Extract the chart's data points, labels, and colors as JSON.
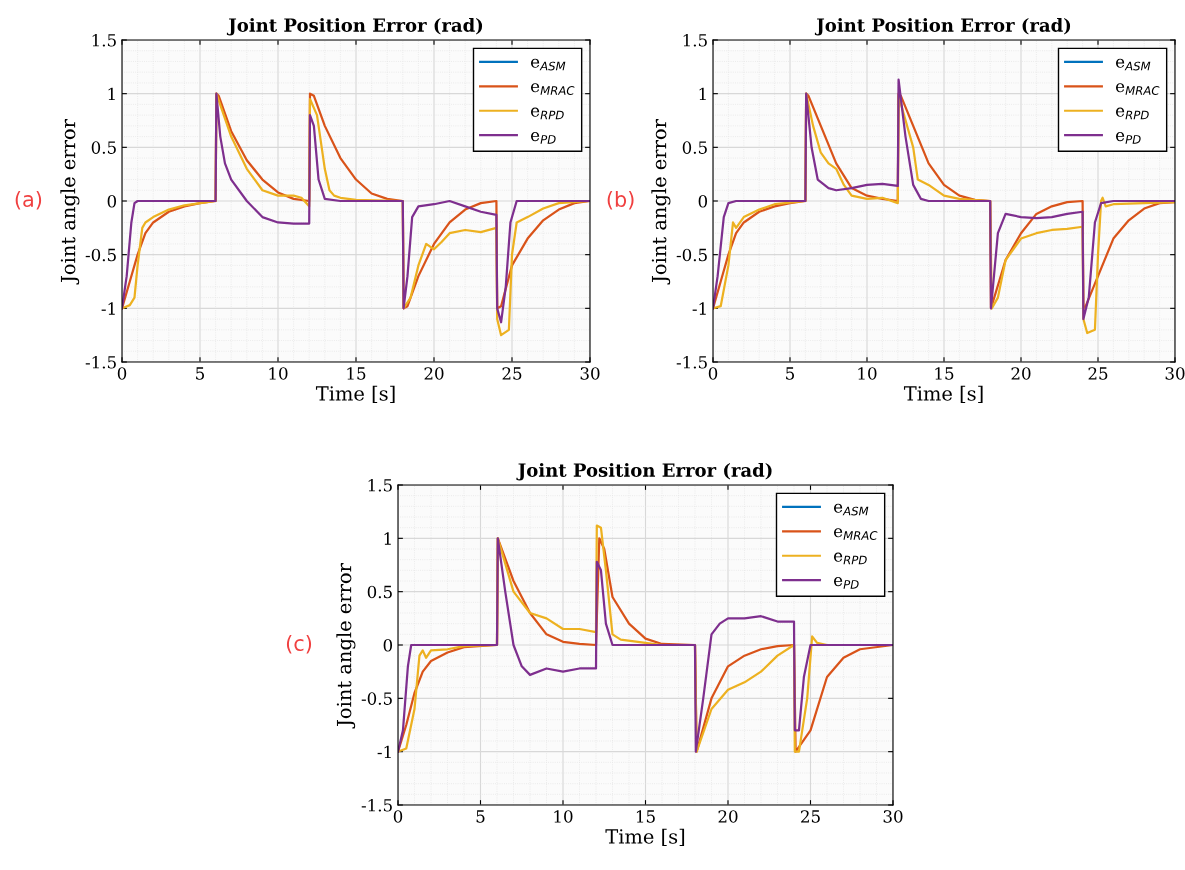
{
  "chart_data": [
    {
      "type": "line",
      "title": "Joint Position Error (rad)",
      "xlabel": "Time [s]",
      "ylabel": "Joint angle error",
      "annotations": [
        "(a)"
      ],
      "xlim": [
        0,
        30
      ],
      "xticks": [
        0,
        5,
        10,
        15,
        20,
        25,
        30
      ],
      "ylim": [
        -1.5,
        1.5
      ],
      "yticks": [
        -1.5,
        -1,
        -0.5,
        0,
        0.5,
        1,
        1.5
      ],
      "grid": true,
      "legend": "top right",
      "series": [
        {
          "name": "e$_{ASM}$",
          "color": "#0072bd"
        },
        {
          "name": "e$_{MRAC}$",
          "color": "#d95319",
          "x": [
            0,
            0.5,
            1,
            1.5,
            2,
            3,
            4,
            5,
            6,
            6.05,
            6.2,
            7,
            8,
            9,
            10,
            11,
            12,
            12.05,
            12.3,
            13,
            14,
            15,
            16,
            17,
            18,
            18.05,
            18.3,
            19,
            20,
            21,
            22,
            23,
            24,
            24.05,
            24.3,
            25,
            26,
            27,
            28,
            29,
            30
          ],
          "values": [
            -1,
            -0.75,
            -0.5,
            -0.3,
            -0.2,
            -0.1,
            -0.05,
            -0.02,
            0,
            1,
            0.98,
            0.65,
            0.38,
            0.2,
            0.08,
            0.02,
            0,
            1,
            0.98,
            0.7,
            0.4,
            0.2,
            0.07,
            0.02,
            0,
            -1,
            -0.98,
            -0.7,
            -0.4,
            -0.2,
            -0.08,
            -0.02,
            0,
            -1,
            -0.98,
            -0.6,
            -0.35,
            -0.18,
            -0.08,
            -0.02,
            0
          ]
        },
        {
          "name": "e$_{RPD}$",
          "color": "#edb120",
          "x": [
            0,
            0.5,
            0.8,
            1,
            1.3,
            1.5,
            2,
            3,
            4,
            6,
            6.05,
            7,
            8,
            9,
            10,
            11,
            11.5,
            12,
            12.05,
            12.5,
            13,
            13.3,
            13.6,
            14,
            15,
            18,
            18.05,
            18.5,
            19,
            19.5,
            20,
            20.5,
            21,
            22,
            23,
            24,
            24.05,
            24.3,
            24.8,
            25,
            25.3,
            26,
            27,
            28,
            30
          ],
          "values": [
            -1,
            -0.97,
            -0.9,
            -0.6,
            -0.25,
            -0.2,
            -0.15,
            -0.08,
            -0.04,
            0,
            1,
            0.6,
            0.3,
            0.1,
            0.05,
            0.05,
            0.03,
            -0.05,
            0.95,
            0.8,
            0.3,
            0.1,
            0.05,
            0.03,
            0.01,
            0,
            -1,
            -0.9,
            -0.6,
            -0.4,
            -0.45,
            -0.38,
            -0.3,
            -0.27,
            -0.29,
            -0.25,
            -1.1,
            -1.25,
            -1.2,
            -0.5,
            -0.2,
            -0.15,
            -0.07,
            -0.02,
            0
          ]
        },
        {
          "name": "e$_{PD}$",
          "color": "#7e2f8e",
          "x": [
            0,
            0.3,
            0.6,
            0.8,
            1,
            6,
            6.05,
            6.3,
            6.6,
            7,
            8,
            9,
            10,
            11,
            12,
            12.05,
            12.3,
            12.6,
            13,
            14,
            18,
            18.05,
            18.3,
            18.6,
            19,
            20,
            21,
            22,
            23,
            24,
            24.05,
            24.3,
            24.6,
            24.9,
            25.3,
            30
          ],
          "values": [
            -1,
            -0.7,
            -0.2,
            -0.02,
            0,
            0,
            1,
            0.6,
            0.35,
            0.2,
            0,
            -0.15,
            -0.2,
            -0.21,
            -0.21,
            0.8,
            0.7,
            0.2,
            0.02,
            0,
            0,
            -1,
            -0.7,
            -0.15,
            -0.05,
            -0.03,
            0,
            -0.05,
            -0.1,
            -0.13,
            -1,
            -1.13,
            -0.8,
            -0.2,
            0,
            0
          ]
        }
      ]
    },
    {
      "type": "line",
      "title": "Joint Position Error (rad)",
      "xlabel": "Time [s]",
      "ylabel": "Joint angle error",
      "annotations": [
        "(b)"
      ],
      "xlim": [
        0,
        30
      ],
      "xticks": [
        0,
        5,
        10,
        15,
        20,
        25,
        30
      ],
      "ylim": [
        -1.5,
        1.5
      ],
      "yticks": [
        -1.5,
        -1,
        -0.5,
        0,
        0.5,
        1,
        1.5
      ],
      "grid": true,
      "legend": "top right",
      "series": [
        {
          "name": "e$_{ASM}$",
          "color": "#0072bd"
        },
        {
          "name": "e$_{MRAC}$",
          "color": "#d95319",
          "x": [
            0,
            0.5,
            1,
            1.5,
            2,
            3,
            4,
            5,
            6,
            6.05,
            6.2,
            7,
            8,
            9,
            10,
            11,
            12,
            12.05,
            12.2,
            13,
            14,
            15,
            16,
            17,
            18,
            18.05,
            19,
            20,
            21,
            22,
            23,
            24,
            24.05,
            24.2,
            25,
            26,
            27,
            28,
            29,
            30
          ],
          "values": [
            -1,
            -0.75,
            -0.5,
            -0.3,
            -0.2,
            -0.1,
            -0.05,
            -0.02,
            0,
            1,
            0.98,
            0.7,
            0.35,
            0.12,
            0.05,
            0.02,
            0,
            1,
            0.98,
            0.7,
            0.35,
            0.15,
            0.05,
            0.01,
            0,
            -1,
            -0.55,
            -0.3,
            -0.12,
            -0.05,
            -0.01,
            0,
            -1,
            -0.98,
            -0.7,
            -0.35,
            -0.18,
            -0.07,
            -0.02,
            -0.01
          ]
        },
        {
          "name": "e$_{RPD}$",
          "color": "#edb120",
          "x": [
            0,
            0.5,
            1,
            1.3,
            1.5,
            2,
            3,
            4,
            6,
            6.05,
            6.5,
            7,
            7.5,
            8,
            8.5,
            9,
            10,
            11,
            12,
            12.05,
            13,
            13.3,
            14,
            15,
            16,
            18,
            18.1,
            18.5,
            19,
            20,
            21,
            22,
            23,
            24,
            24.05,
            24.3,
            24.8,
            25,
            25.2,
            25.3,
            25.5,
            26,
            28,
            30
          ],
          "values": [
            -1,
            -0.98,
            -0.6,
            -0.2,
            -0.25,
            -0.15,
            -0.08,
            -0.03,
            0,
            1,
            0.7,
            0.45,
            0.35,
            0.3,
            0.15,
            0.05,
            0.02,
            0.03,
            -0.02,
            0.98,
            0.5,
            0.2,
            0.15,
            0.05,
            0.02,
            0,
            -1,
            -0.9,
            -0.55,
            -0.35,
            -0.3,
            -0.27,
            -0.26,
            -0.24,
            -1.1,
            -1.23,
            -1.2,
            -0.5,
            0,
            0.03,
            -0.05,
            -0.03,
            -0.02,
            -0.01
          ]
        },
        {
          "name": "e$_{PD}$",
          "color": "#7e2f8e",
          "x": [
            0,
            0.3,
            0.7,
            1,
            1.5,
            6,
            6.05,
            6.4,
            6.8,
            7.5,
            8,
            9,
            10,
            11,
            12,
            12.05,
            12.5,
            13,
            13.5,
            14,
            18,
            18.05,
            18.5,
            19,
            20,
            21,
            22,
            23,
            24,
            24.05,
            24.4,
            24.8,
            25.2,
            26,
            30
          ],
          "values": [
            -1,
            -0.7,
            -0.15,
            -0.02,
            0,
            0,
            1,
            0.5,
            0.2,
            0.12,
            0.1,
            0.12,
            0.15,
            0.16,
            0.14,
            1.13,
            0.6,
            0.15,
            0.02,
            0,
            0,
            -1,
            -0.3,
            -0.12,
            -0.15,
            -0.16,
            -0.15,
            -0.12,
            -0.1,
            -1.1,
            -0.9,
            -0.2,
            -0.02,
            0,
            0
          ]
        }
      ]
    },
    {
      "type": "line",
      "title": "Joint Position Error (rad)",
      "xlabel": "Time [s]",
      "ylabel": "Joint angle error",
      "annotations": [
        "(c)"
      ],
      "xlim": [
        0,
        30
      ],
      "xticks": [
        0,
        5,
        10,
        15,
        20,
        25,
        30
      ],
      "ylim": [
        -1.5,
        1.5
      ],
      "yticks": [
        -1.5,
        -1,
        -0.5,
        0,
        0.5,
        1,
        1.5
      ],
      "grid": true,
      "legend": "top right",
      "series": [
        {
          "name": "e$_{ASM}$",
          "color": "#0072bd"
        },
        {
          "name": "e$_{MRAC}$",
          "color": "#d95319",
          "x": [
            0,
            0.5,
            1,
            1.5,
            2,
            3,
            4,
            6,
            6.05,
            7,
            8,
            9,
            10,
            11,
            12,
            12.2,
            12.5,
            13,
            14,
            15,
            16,
            18,
            18.1,
            19,
            20,
            21,
            22,
            23,
            24,
            24.1,
            25,
            26,
            27,
            28,
            30
          ],
          "values": [
            -1,
            -0.75,
            -0.45,
            -0.25,
            -0.15,
            -0.07,
            -0.02,
            0,
            1,
            0.6,
            0.3,
            0.1,
            0.03,
            0.01,
            0,
            1,
            0.9,
            0.45,
            0.2,
            0.06,
            0.01,
            0,
            -1,
            -0.5,
            -0.2,
            -0.1,
            -0.04,
            -0.01,
            0,
            -1,
            -0.8,
            -0.3,
            -0.12,
            -0.04,
            0
          ]
        },
        {
          "name": "e$_{RPD}$",
          "color": "#edb120",
          "x": [
            0,
            0.5,
            1,
            1.3,
            1.5,
            1.7,
            2,
            3,
            4,
            6,
            6.05,
            7,
            8,
            9,
            10,
            11,
            12,
            12.05,
            12.3,
            12.6,
            13,
            13.5,
            15,
            16,
            18,
            18.1,
            19,
            20,
            21,
            22,
            23,
            24,
            24.05,
            24.3,
            24.8,
            25.1,
            25.4,
            26,
            30
          ],
          "values": [
            -1,
            -0.97,
            -0.6,
            -0.1,
            -0.05,
            -0.12,
            -0.05,
            -0.04,
            -0.01,
            0,
            1,
            0.5,
            0.3,
            0.25,
            0.15,
            0.15,
            0.12,
            1.12,
            1.1,
            0.7,
            0.1,
            0.05,
            0.02,
            0,
            0,
            -1,
            -0.6,
            -0.42,
            -0.35,
            -0.25,
            -0.1,
            0,
            -1,
            -1,
            -0.5,
            0.08,
            0.02,
            0,
            0
          ]
        },
        {
          "name": "e$_{PD}$",
          "color": "#7e2f8e",
          "x": [
            0,
            0.3,
            0.6,
            0.8,
            6,
            6.05,
            6.5,
            7,
            7.5,
            8,
            9,
            10,
            11,
            12,
            12.05,
            12.3,
            12.6,
            13,
            18,
            18.05,
            18.5,
            19,
            19.5,
            20,
            21,
            22,
            23,
            24,
            24.05,
            24.3,
            24.6,
            25,
            30
          ],
          "values": [
            -1,
            -0.8,
            -0.2,
            0,
            0,
            1,
            0.5,
            0,
            -0.2,
            -0.28,
            -0.22,
            -0.25,
            -0.22,
            -0.22,
            0.78,
            0.7,
            0.2,
            0,
            0,
            -1,
            -0.5,
            0.1,
            0.2,
            0.25,
            0.25,
            0.27,
            0.22,
            0.22,
            -0.8,
            -0.8,
            -0.3,
            0,
            0
          ]
        }
      ]
    }
  ]
}
